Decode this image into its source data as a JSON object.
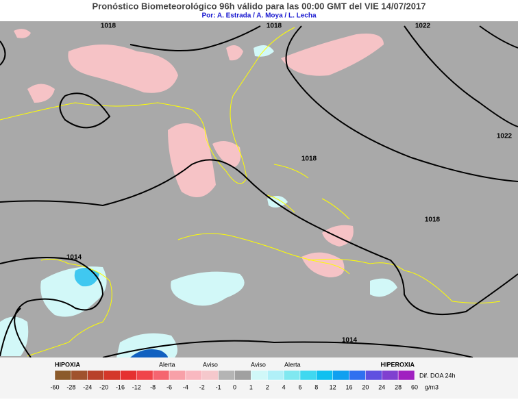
{
  "header": {
    "title": "Pronóstico Biometeorológico 96h  válido para las 00:00 GMT del VIE 14/07/2017",
    "subtitle": "Por: A. Estrada / A. Moya / L. Lecha"
  },
  "isobars": [
    {
      "label": "1018"
    },
    {
      "label": "1018"
    },
    {
      "label": "1022"
    },
    {
      "label": "1022"
    },
    {
      "label": "1018"
    },
    {
      "label": "1018"
    },
    {
      "label": "1014"
    },
    {
      "label": "1014"
    }
  ],
  "legend": {
    "left": "HIPOXIA",
    "right": "HIPEROXIA",
    "levels": [
      "Alerta",
      "Aviso",
      "Aviso",
      "Alerta"
    ],
    "quantity": "Dif. DOA 24h",
    "unit": "g/m3",
    "ticks": [
      "-60",
      "-28",
      "-24",
      "-20",
      "-16",
      "-12",
      "-8",
      "-6",
      "-4",
      "-2",
      "-1",
      "0",
      "1",
      "2",
      "4",
      "6",
      "8",
      "12",
      "16",
      "20",
      "24",
      "28",
      "60"
    ],
    "colors": [
      "#8b5a2b",
      "#a0522d",
      "#b8412a",
      "#d4372a",
      "#e53030",
      "#f0444a",
      "#f56570",
      "#f8a0a8",
      "#f9b8c0",
      "#f5c8cc",
      "#b4b4b4",
      "#a0a0a0",
      "#d0f8f8",
      "#b0f0f8",
      "#80e8f0",
      "#40d8f0",
      "#10c0f0",
      "#10a0f0",
      "#3070f0",
      "#6050e0",
      "#8040d0",
      "#a020c0"
    ]
  }
}
